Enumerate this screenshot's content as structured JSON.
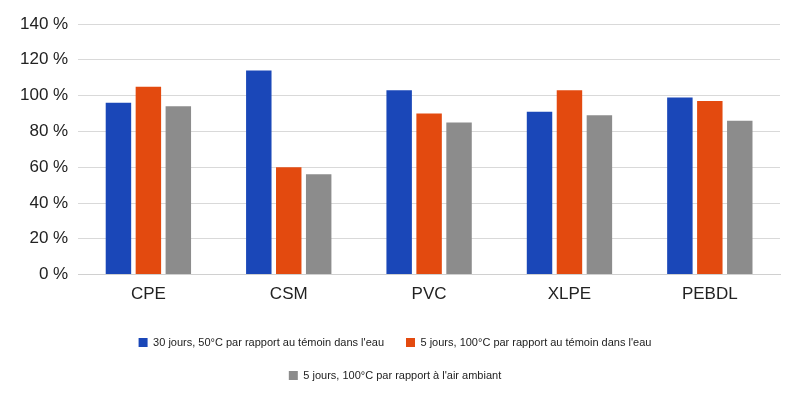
{
  "chart_data": {
    "type": "bar",
    "categories": [
      "CPE",
      "CSM",
      "PVC",
      "XLPE",
      "PEBDL"
    ],
    "series": [
      {
        "name": "30 jours, 50°C par rapport au témoin dans l'eau",
        "color": "#1a47b8",
        "values": [
          96,
          114,
          103,
          91,
          99
        ]
      },
      {
        "name": "5 jours, 100°C par rapport au témoin dans l'eau",
        "color": "#e34a0f",
        "values": [
          105,
          60,
          90,
          103,
          97
        ]
      },
      {
        "name": "5 jours, 100°C par rapport à l'air ambiant",
        "color": "#8c8c8c",
        "values": [
          94,
          56,
          85,
          89,
          86
        ]
      }
    ],
    "ylim": [
      0,
      140
    ],
    "yticks": [
      {
        "value": 0,
        "label": "0 %"
      },
      {
        "value": 20,
        "label": "20 %"
      },
      {
        "value": 40,
        "label": "40 %"
      },
      {
        "value": 60,
        "label": "60 %"
      },
      {
        "value": 80,
        "label": "80 %"
      },
      {
        "value": 100,
        "label": "100 %"
      },
      {
        "value": 120,
        "label": "120 %"
      },
      {
        "value": 140,
        "label": "140 %"
      }
    ],
    "grid": true,
    "legend": "bottom"
  }
}
